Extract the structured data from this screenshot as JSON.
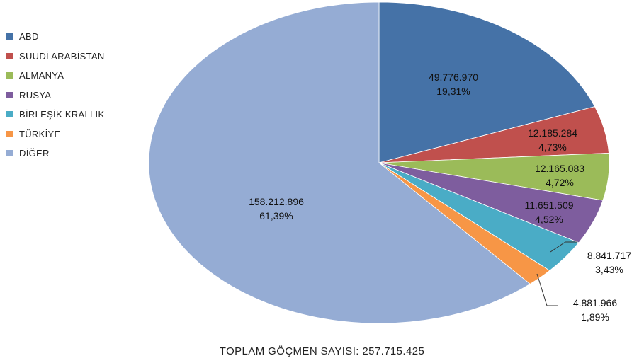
{
  "chart_data": {
    "type": "pie",
    "title": "",
    "legend_position": "top-left",
    "slices": [
      {
        "name": "ABD",
        "value": 49776970,
        "value_label": "49.776.970",
        "percent_label": "19,31%",
        "color": "#4572a7"
      },
      {
        "name": "SUUDİ ARABİSTAN",
        "value": 12185284,
        "value_label": "12.185.284",
        "percent_label": "4,73%",
        "color": "#c0504d"
      },
      {
        "name": "ALMANYA",
        "value": 12165083,
        "value_label": "12.165.083",
        "percent_label": "4,72%",
        "color": "#9bbb59"
      },
      {
        "name": "RUSYA",
        "value": 11651509,
        "value_label": "11.651.509",
        "percent_label": "4,52%",
        "color": "#7e5d9e"
      },
      {
        "name": "BİRLEŞİK KRALLIK",
        "value": 8841717,
        "value_label": "8.841.717",
        "percent_label": "3,43%",
        "color": "#4aacc6"
      },
      {
        "name": "TÜRKİYE",
        "value": 4881966,
        "value_label": "4.881.966",
        "percent_label": "1,89%",
        "color": "#f79646"
      },
      {
        "name": "DİĞER",
        "value": 158212896,
        "value_label": "158.212.896",
        "percent_label": "61,39%",
        "color": "#95acd4"
      }
    ],
    "footer": "TOPLAM GÖÇMEN SAYISI: 257.715.425"
  }
}
